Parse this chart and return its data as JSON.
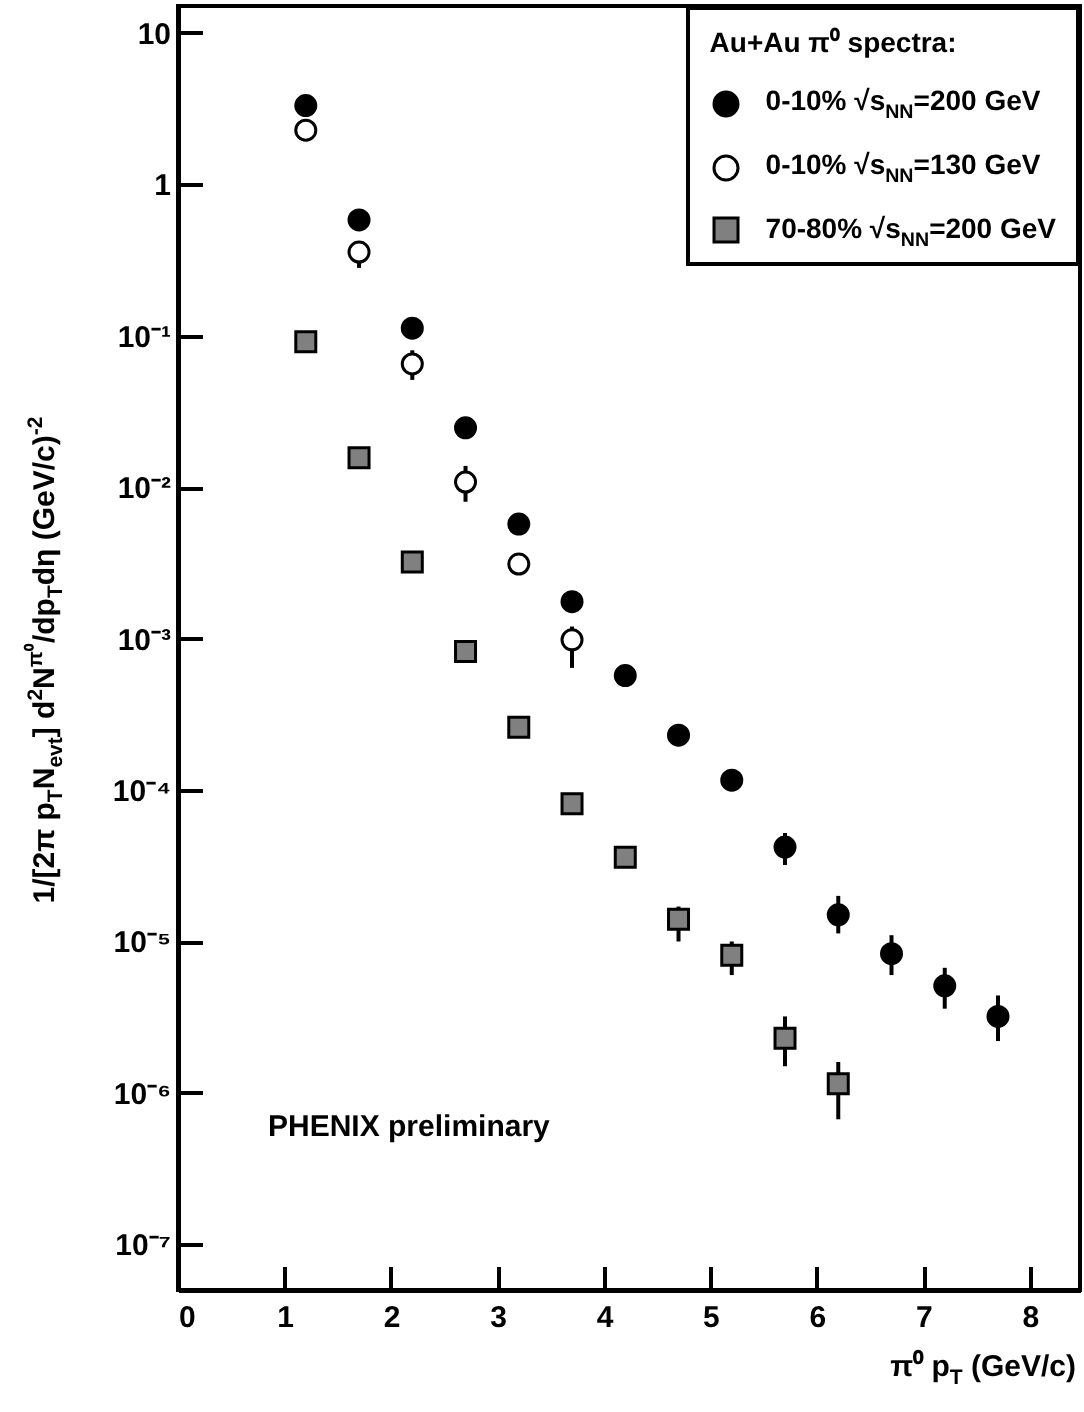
{
  "chart_data": {
    "type": "scatter",
    "xlabel": "π⁰ p$_{T}$ (GeV/c)",
    "ylabel": "1/[2π p$_{T}$N$_{evt}$] d$^{2}$N$^{π⁰}$/dp$_{T}$dη (GeV/c)$^{-2}$",
    "legend_title": "Au+Au π⁰ spectra:",
    "legend": "top right",
    "log": "y",
    "xlim": [
      0,
      8.47
    ],
    "xticks": [
      0,
      1,
      2,
      3,
      4,
      5,
      6,
      7,
      8
    ],
    "ylim": [
      5e-08,
      15
    ],
    "yticks": [
      {
        "value": 1e-07,
        "label": "10⁻⁷"
      },
      {
        "value": 1e-06,
        "label": "10⁻⁶"
      },
      {
        "value": 1e-05,
        "label": "10⁻⁵"
      },
      {
        "value": 0.0001,
        "label": "10⁻⁴"
      },
      {
        "value": 0.001,
        "label": "10⁻³"
      },
      {
        "value": 0.01,
        "label": "10⁻²"
      },
      {
        "value": 0.1,
        "label": "10⁻¹"
      },
      1,
      10
    ],
    "annotations": [
      "PHENIX preliminary"
    ],
    "series": [
      {
        "name": "0-10% √s$_{NN}$=200 GeV",
        "color": "#000000",
        "marker": "circle",
        "x": [
          1.2,
          1.7,
          2.2,
          2.7,
          3.2,
          3.7,
          4.2,
          4.7,
          5.2,
          5.7,
          6.2,
          6.7,
          7.2,
          7.7
        ],
        "values": [
          3.3,
          0.58,
          0.112,
          0.0246,
          0.0057,
          0.00175,
          0.00057,
          0.00023,
          0.000116,
          4.2e-05,
          1.5e-05,
          8.3e-06,
          5.1e-06,
          3.2e-06
        ],
        "errors": [
          null,
          null,
          null,
          null,
          null,
          null,
          null,
          null,
          null,
          [
            3.2e-05,
            5.2e-05
          ],
          [
            1.13e-05,
            2e-05
          ],
          [
            6e-06,
            1.1e-05
          ],
          [
            3.6e-06,
            6.7e-06
          ],
          [
            2.2e-06,
            4.4e-06
          ]
        ]
      },
      {
        "name": "0-10% √s$_{NN}$=130 GeV",
        "color": "#ffffff",
        "marker": "circle",
        "x": [
          1.2,
          1.7,
          2.2,
          2.7,
          3.2,
          3.7
        ],
        "values": [
          2.27,
          0.356,
          0.065,
          0.0108,
          0.0031,
          0.00098
        ],
        "errors": [
          null,
          [
            0.28,
            0.4
          ],
          [
            0.051,
            0.08
          ],
          [
            0.008,
            0.0138
          ],
          null,
          [
            0.00064,
            0.0012
          ]
        ]
      },
      {
        "name": "70-80% √s$_{NN}$=200 GeV",
        "color": "#808080",
        "marker": "square",
        "x": [
          1.2,
          1.7,
          2.2,
          2.7,
          3.2,
          3.7,
          4.2,
          4.7,
          5.2,
          5.7,
          6.2
        ],
        "values": [
          0.091,
          0.0156,
          0.0032,
          0.00082,
          0.00026,
          8.1e-05,
          3.6e-05,
          1.4e-05,
          8.1e-06,
          2.3e-06,
          1.15e-06
        ],
        "errors": [
          null,
          null,
          null,
          null,
          null,
          null,
          null,
          [
            1e-05,
            1.7e-05
          ],
          [
            6e-06,
            1e-05
          ],
          [
            1.5e-06,
            3.2e-06
          ],
          [
            6.7e-07,
            1.6e-06
          ]
        ]
      }
    ]
  }
}
